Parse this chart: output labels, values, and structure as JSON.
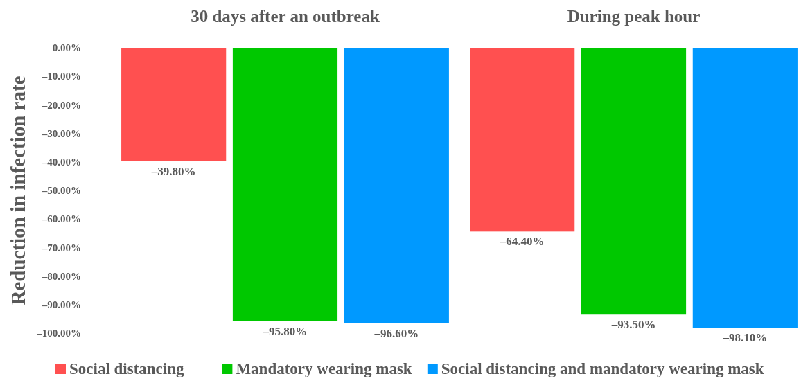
{
  "chart_data": {
    "type": "bar",
    "ylabel": "Reduction in infection rate",
    "categories": [
      "30 days after an outbreak",
      "During peak hour"
    ],
    "series": [
      {
        "name": "Social distancing",
        "color": "#ff5050",
        "values": [
          -39.8,
          -64.4
        ],
        "value_labels": [
          "–39.80%",
          "–64.40%"
        ]
      },
      {
        "name": "Mandatory wearing mask",
        "color": "#00c800",
        "values": [
          -95.8,
          -93.5
        ],
        "value_labels": [
          "–95.80%",
          "–93.50%"
        ]
      },
      {
        "name": "Social distancing and mandatory wearing mask",
        "color": "#0099ff",
        "values": [
          -96.6,
          -98.1
        ],
        "value_labels": [
          "–96.60%",
          "–98.10%"
        ]
      }
    ],
    "ylim": [
      -100,
      0
    ],
    "yticks": [
      {
        "value": 0,
        "label": "0.00%"
      },
      {
        "value": -10,
        "label": "–10.00%"
      },
      {
        "value": -20,
        "label": "–20.00%"
      },
      {
        "value": -30,
        "label": "–30.00%"
      },
      {
        "value": -40,
        "label": "–40.00%"
      },
      {
        "value": -50,
        "label": "–50.00%"
      },
      {
        "value": -60,
        "label": "–60.00%"
      },
      {
        "value": -70,
        "label": "–70.00%"
      },
      {
        "value": -80,
        "label": "–80.00%"
      },
      {
        "value": -90,
        "label": "–90.00%"
      },
      {
        "value": -100,
        "label": "–100.00%"
      }
    ],
    "legend": "bottom",
    "grid": false
  }
}
